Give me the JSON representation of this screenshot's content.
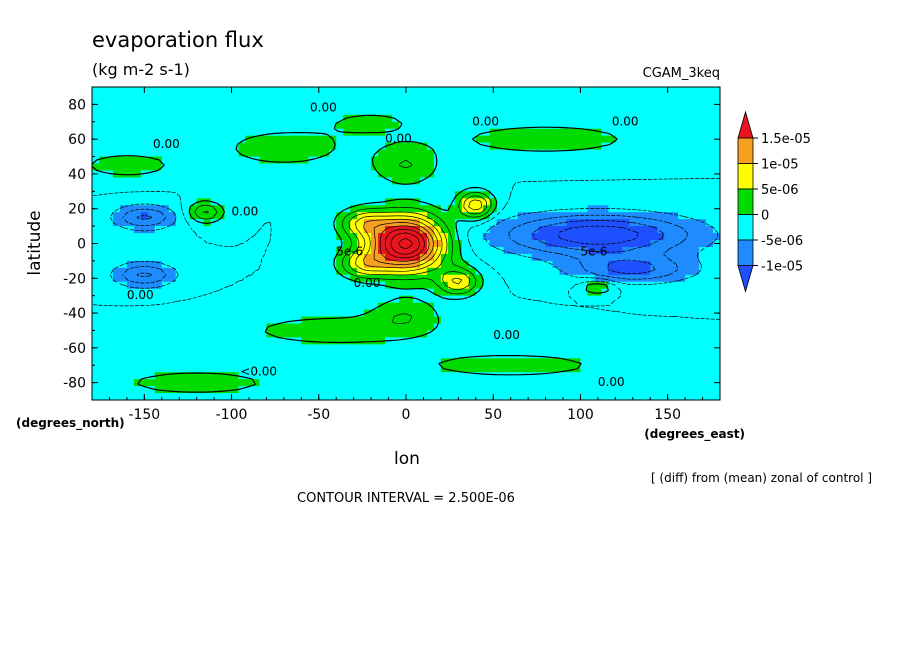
{
  "chart_data": {
    "type": "heatmap",
    "title": "evaporation flux",
    "subtitle": "(kg m-2 s-1)",
    "dataset_label": "CGAM_3keq",
    "xlabel": "lon",
    "ylabel": "latitude",
    "x_units": "(degrees_east)",
    "y_units": "(degrees_north)",
    "xlim": [
      -180,
      180
    ],
    "ylim": [
      -90,
      90
    ],
    "x_ticks": [
      -150,
      -100,
      -50,
      0,
      50,
      100,
      150
    ],
    "y_ticks": [
      -80,
      -60,
      -40,
      -20,
      0,
      20,
      40,
      60,
      80
    ],
    "x_tick_labels": [
      "-150",
      "-100",
      "-50",
      "0",
      "50",
      "100",
      "150"
    ],
    "y_tick_labels": [
      "-80",
      "-60",
      "-40",
      "-20",
      "0",
      "20",
      "40",
      "60",
      "80"
    ],
    "note": "[ (diff) from (mean) zonal of control ]",
    "contour_interval_text": "CONTOUR INTERVAL = 2.500E-06",
    "levels": [
      -1e-05,
      -5e-06,
      0,
      5e-06,
      1e-05,
      1.5e-05
    ],
    "colorbar": {
      "labels": [
        "1.5e-05",
        "1e-05",
        "5e-06",
        "0",
        "-5e-06",
        "-1e-05"
      ],
      "colors": [
        "#e8141e",
        "#f5a01e",
        "#ffff00",
        "#00dc00",
        "#00ffff",
        "#1e8cff",
        "#1e50ff"
      ]
    },
    "contour_labels": [
      {
        "text": "0.00",
        "lon": -55,
        "lat": 76
      },
      {
        "text": "0.00",
        "lon": -145,
        "lat": 55
      },
      {
        "text": "0.00",
        "lon": -12,
        "lat": 58
      },
      {
        "text": "0.00",
        "lon": 38,
        "lat": 68
      },
      {
        "text": "0.00",
        "lon": 118,
        "lat": 68
      },
      {
        "text": "0.00",
        "lon": -100,
        "lat": 16
      },
      {
        "text": "5e-6",
        "lon": -40,
        "lat": -7
      },
      {
        "text": "5e-6",
        "lon": 100,
        "lat": -7
      },
      {
        "text": "0.00",
        "lon": -160,
        "lat": -32
      },
      {
        "text": "0.00",
        "lon": -30,
        "lat": -25
      },
      {
        "text": "0.00",
        "lon": 50,
        "lat": -55
      },
      {
        "text": "<0.00",
        "lon": -95,
        "lat": -76
      },
      {
        "text": "0.00",
        "lon": 110,
        "lat": -82
      }
    ],
    "features": {
      "background_value": -2.5e-06,
      "blobs": [
        {
          "lon": 0,
          "lat": 0,
          "slon": 22,
          "slat": 16,
          "value": 2.6e-05
        },
        {
          "lon": 40,
          "lat": 22,
          "slon": 10,
          "slat": 8,
          "value": 1.2e-05
        },
        {
          "lon": 30,
          "lat": -22,
          "slon": 12,
          "slat": 8,
          "value": 1e-05
        },
        {
          "lon": -25,
          "lat": 12,
          "slon": 14,
          "slat": 8,
          "value": 8e-06
        },
        {
          "lon": -25,
          "lat": -12,
          "slon": 14,
          "slat": 8,
          "value": 8e-06
        },
        {
          "lon": 110,
          "lat": 5,
          "slon": 55,
          "slat": 12,
          "value": -1.2e-05
        },
        {
          "lon": 130,
          "lat": -15,
          "slon": 35,
          "slat": 8,
          "value": -8e-06
        },
        {
          "lon": -150,
          "lat": 15,
          "slon": 18,
          "slat": 7,
          "value": -8e-06
        },
        {
          "lon": -150,
          "lat": -18,
          "slon": 18,
          "slat": 7,
          "value": -8e-06
        },
        {
          "lon": -115,
          "lat": 18,
          "slon": 10,
          "slat": 6,
          "value": 8e-06
        },
        {
          "lon": 110,
          "lat": -25,
          "slon": 10,
          "slat": 4,
          "value": 6e-06
        },
        {
          "lon": -70,
          "lat": 55,
          "slon": 40,
          "slat": 12,
          "value": 4e-06
        },
        {
          "lon": 80,
          "lat": 60,
          "slon": 60,
          "slat": 10,
          "value": 4e-06
        },
        {
          "lon": -160,
          "lat": 45,
          "slon": 30,
          "slat": 8,
          "value": 4e-06
        },
        {
          "lon": -40,
          "lat": -50,
          "slon": 60,
          "slat": 10,
          "value": 4e-06
        },
        {
          "lon": 60,
          "lat": -70,
          "slon": 60,
          "slat": 8,
          "value": 4e-06
        },
        {
          "lon": -120,
          "lat": -80,
          "slon": 50,
          "slat": 8,
          "value": 4e-06
        },
        {
          "lon": 0,
          "lat": 45,
          "slon": 20,
          "slat": 12,
          "value": 5e-06
        },
        {
          "lon": 0,
          "lat": -40,
          "slon": 20,
          "slat": 10,
          "value": 4e-06
        },
        {
          "lon": -20,
          "lat": 70,
          "slon": 30,
          "slat": 8,
          "value": 3e-06
        }
      ]
    }
  }
}
